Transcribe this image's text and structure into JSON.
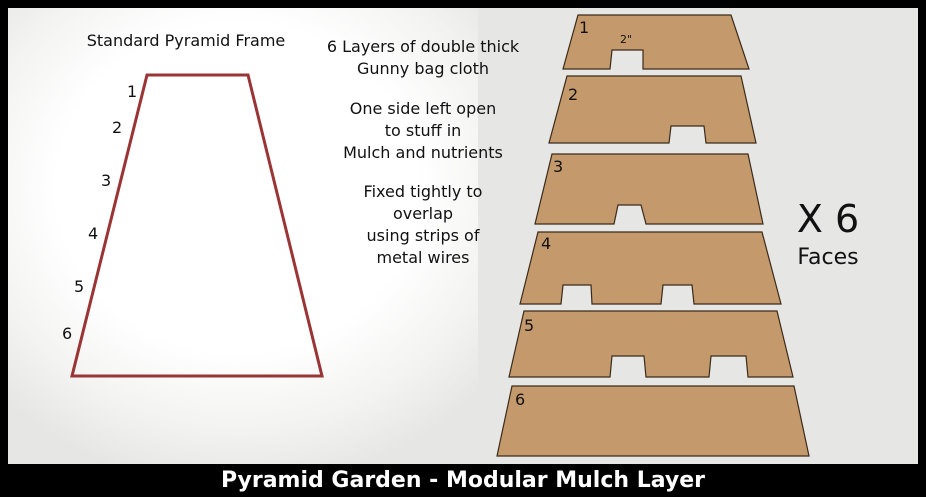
{
  "frame": {
    "title": "Standard Pyramid Frame",
    "level_labels": [
      "1",
      "2",
      "3",
      "4",
      "5",
      "6"
    ],
    "outline_color": "#9b3434"
  },
  "notes": {
    "layers": [
      "6 Layers of double thick",
      "Gunny bag cloth"
    ],
    "open_side": [
      "One side left open",
      "to stuff in",
      "Mulch and nutrients"
    ],
    "fixing": [
      "Fixed tightly to",
      "overlap",
      "using strips of",
      "metal wires"
    ]
  },
  "panels": {
    "fill_color": "#c49a6c",
    "notch_size_label": "2\"",
    "labels": [
      "1",
      "2",
      "3",
      "4",
      "5",
      "6"
    ]
  },
  "multiplier": {
    "count": "X 6",
    "unit": "Faces"
  },
  "footer": {
    "title": "Pyramid Garden - Modular Mulch Layer"
  }
}
